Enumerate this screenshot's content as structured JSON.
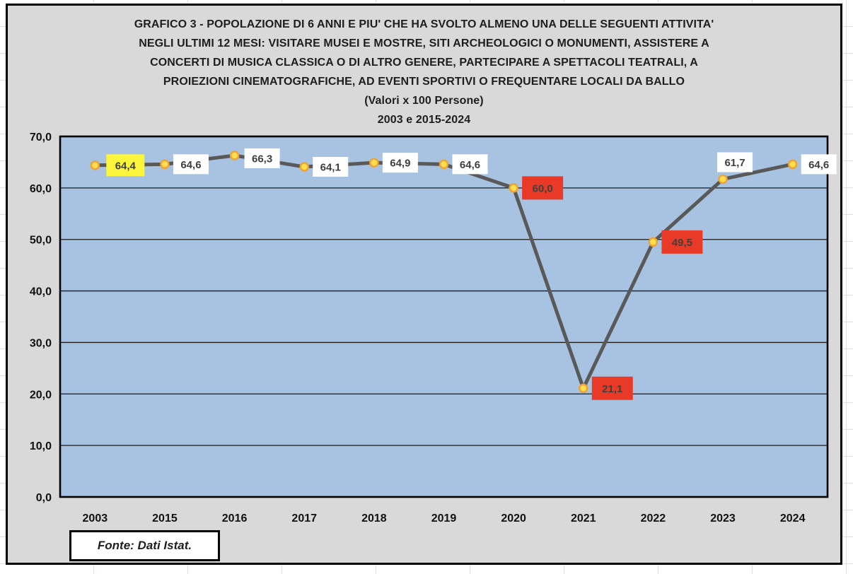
{
  "colors": {
    "sheet_gridline": "#dce0e5",
    "chart_background": "#D9D9D9",
    "chart_border": "#000000",
    "plot_background": "#A8C2E2",
    "plot_border": "#000000",
    "gridline": "#1a1a1a",
    "series_line": "#595959",
    "marker_fill": "#FFDF4F",
    "marker_stroke": "#F0A232",
    "label_text": "#3F3F3F",
    "axis_text": "#111111",
    "highlight_white": "#FFFFFF",
    "highlight_yellow": "#FBF63B",
    "highlight_red": "#E93A28"
  },
  "chart_data": {
    "type": "line",
    "title_lines": [
      "GRAFICO 3 - POPOLAZIONE DI 6 ANNI E PIU' CHE HA SVOLTO ALMENO UNA DELLE SEGUENTI ATTIVITA'",
      "NEGLI ULTIMI 12 MESI: VISITARE MUSEI E MOSTRE, SITI ARCHEOLOGICI O MONUMENTI, ASSISTERE A",
      "CONCERTI DI MUSICA CLASSICA O DI ALTRO GENERE, PARTECIPARE A SPETTACOLI TEATRALI, A",
      "PROIEZIONI CINEMATOGRAFICHE, AD EVENTI SPORTIVI O FREQUENTARE LOCALI DA BALLO",
      "(Valori x 100 Persone)",
      "2003 e 2015-2024"
    ],
    "categories": [
      "2003",
      "2015",
      "2016",
      "2017",
      "2018",
      "2019",
      "2020",
      "2021",
      "2022",
      "2023",
      "2024"
    ],
    "series": [
      {
        "name": "Popolazione di 6 anni e piu' che ha svolto almeno una attivita'",
        "values": [
          64.4,
          64.6,
          66.3,
          64.1,
          64.9,
          64.6,
          60.0,
          21.1,
          49.5,
          61.7,
          64.6
        ]
      }
    ],
    "data_labels": [
      "64,4",
      "64,6",
      "66,3",
      "64,1",
      "64,9",
      "64,6",
      "60,0",
      "21,1",
      "49,5",
      "61,7",
      "64,6"
    ],
    "label_highlights": [
      "yellow",
      "white",
      "white",
      "white",
      "white",
      "white",
      "red",
      "red",
      "red",
      "white",
      "white"
    ],
    "ylim": [
      0,
      70
    ],
    "ytick_step": 10,
    "ytick_labels": [
      "0,0",
      "10,0",
      "20,0",
      "30,0",
      "40,0",
      "50,0",
      "60,0",
      "70,0"
    ],
    "xlabel": "",
    "ylabel": "",
    "grid": true,
    "legend_position": "none",
    "source_note": "Fonte: Dati Istat."
  }
}
